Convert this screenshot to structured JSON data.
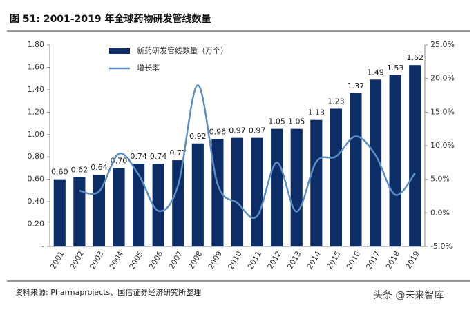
{
  "title": "图 51:  2001-2019 年全球药物研发管线数量",
  "chart_data": {
    "type": "bar",
    "categories": [
      "2001",
      "2002",
      "2003",
      "2004",
      "2005",
      "2006",
      "2007",
      "2008",
      "2009",
      "2010",
      "2011",
      "2012",
      "2013",
      "2014",
      "2015",
      "2016",
      "2017",
      "2018",
      "2019"
    ],
    "series": [
      {
        "name": "新药研发管线数量（万个）",
        "color": "#0d2d66",
        "type": "bar",
        "values": [
          0.6,
          0.62,
          0.64,
          0.7,
          0.74,
          0.74,
          0.77,
          0.92,
          0.96,
          0.97,
          0.97,
          1.05,
          1.05,
          1.13,
          1.23,
          1.37,
          1.49,
          1.53,
          1.62
        ],
        "value_labels": [
          "0.60",
          "0.62",
          "0.64",
          "0.70",
          "0.74",
          "0.74",
          "0.77",
          "0.92",
          "0.96",
          "0.97",
          "0.97",
          "1.05",
          "1.05",
          "1.13",
          "1.23",
          "1.37",
          "1.49",
          "1.53",
          "1.62"
        ]
      },
      {
        "name": "增长率",
        "color": "#5b8ec4",
        "type": "line",
        "axis": "y2",
        "values": [
          null,
          3.3,
          3.2,
          8.8,
          5.7,
          0.3,
          4.1,
          19.0,
          4.3,
          1.5,
          -0.5,
          7.5,
          0.2,
          7.6,
          8.4,
          11.4,
          8.6,
          2.7,
          5.9
        ]
      }
    ],
    "ylim": [
      0,
      1.8
    ],
    "yticks": [
      {
        "value": 0,
        "label": "-"
      },
      {
        "value": 0.2,
        "label": "0.20"
      },
      {
        "value": 0.4,
        "label": "0.40"
      },
      {
        "value": 0.6,
        "label": "0.60"
      },
      {
        "value": 0.8,
        "label": "0.80"
      },
      {
        "value": 1.0,
        "label": "1.00"
      },
      {
        "value": 1.2,
        "label": "1.20"
      },
      {
        "value": 1.4,
        "label": "1.40"
      },
      {
        "value": 1.6,
        "label": "1.60"
      },
      {
        "value": 1.8,
        "label": "1.80"
      }
    ],
    "y2lim": [
      -5,
      25
    ],
    "y2ticks": [
      {
        "value": -5,
        "label": "-5.0%"
      },
      {
        "value": 0,
        "label": "0.0%"
      },
      {
        "value": 5,
        "label": "5.0%"
      },
      {
        "value": 10,
        "label": "10.0%"
      },
      {
        "value": 15,
        "label": "15.0%"
      },
      {
        "value": 20,
        "label": "20.0%"
      },
      {
        "value": 25,
        "label": "25.0%"
      }
    ]
  },
  "source": "资料来源: Pharmaprojects、国信证券经济研究所整理",
  "watermark": "头条 @未来智库"
}
